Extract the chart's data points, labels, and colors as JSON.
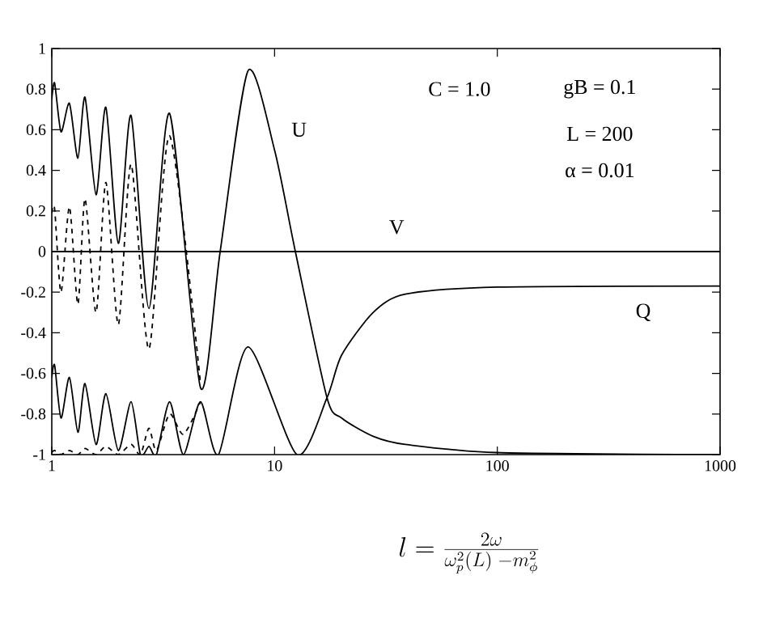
{
  "chart_data": {
    "type": "line",
    "xlabel": "l = \\frac{2\\omega}{\\omega_p^2(L) \\; - m_\\phi^2}",
    "log": "x",
    "xlim": [
      1,
      1000
    ],
    "xticks": [
      1,
      10,
      100,
      1000
    ],
    "ylim": [
      -1,
      1
    ],
    "yticks": [
      -1,
      -0.8,
      -0.6,
      -0.4,
      -0.2,
      0,
      0.2,
      0.4,
      0.6,
      0.8,
      1
    ],
    "grid": false,
    "series": [
      {
        "name": "U",
        "color": "#000000",
        "line_style": "solid",
        "x": [
          1,
          1.03,
          1.1,
          1.2,
          1.31,
          1.41,
          1.58,
          1.75,
          1.99,
          2.27,
          2.73,
          3.38,
          4.65,
          5.7,
          7.6,
          10,
          12.4,
          17.2,
          20,
          27.7,
          38.6,
          100,
          1000
        ],
        "values": [
          0.75,
          0.83,
          0.59,
          0.73,
          0.46,
          0.76,
          0.28,
          0.71,
          0.04,
          0.67,
          -0.28,
          0.68,
          -0.67,
          0,
          0.89,
          0.5,
          0,
          -0.72,
          -0.82,
          -0.91,
          -0.95,
          -0.99,
          -1
        ]
      },
      {
        "name": "Q",
        "color": "#000000",
        "line_style": "solid",
        "x": [
          1,
          1.03,
          1.1,
          1.2,
          1.31,
          1.41,
          1.58,
          1.75,
          1.99,
          2.27,
          2.5,
          2.73,
          2.95,
          3.38,
          3.9,
          4.65,
          5.6,
          7.6,
          12.6,
          17.2,
          20,
          27.7,
          38.6,
          100,
          1000
        ],
        "values": [
          -0.62,
          -0.56,
          -0.82,
          -0.62,
          -0.89,
          -0.65,
          -0.95,
          -0.7,
          -0.98,
          -0.74,
          -1,
          -0.96,
          -1,
          -0.74,
          -1,
          -0.74,
          -1,
          -0.47,
          -1,
          -0.72,
          -0.51,
          -0.3,
          -0.21,
          -0.175,
          -0.17
        ]
      },
      {
        "name": "V",
        "color": "#000000",
        "line_style": "solid",
        "x": [
          1,
          1000
        ],
        "values": [
          0,
          0
        ]
      },
      {
        "color": "#000000",
        "line_style": "dashed",
        "x": [
          1,
          1.03,
          1.1,
          1.2,
          1.31,
          1.41,
          1.58,
          1.75,
          1.99,
          2.27,
          2.73,
          3.38,
          4.65
        ],
        "values": [
          0.19,
          0.21,
          -0.2,
          0.22,
          -0.26,
          0.26,
          -0.3,
          0.34,
          -0.36,
          0.43,
          -0.48,
          0.57,
          -0.65
        ]
      },
      {
        "color": "#000000",
        "line_style": "dashed",
        "x": [
          1,
          1.03,
          1.1,
          1.2,
          1.31,
          1.41,
          1.58,
          1.75,
          1.99,
          2.27,
          2.5,
          2.73,
          2.95,
          3.38,
          3.9,
          4.65
        ],
        "values": [
          -0.99,
          -0.98,
          -1,
          -0.98,
          -1,
          -0.97,
          -1,
          -0.96,
          -1,
          -0.95,
          -1,
          -0.87,
          -0.98,
          -0.8,
          -0.9,
          -0.74
        ]
      }
    ],
    "annotations": [
      "C = 1.0",
      "gB = 0.1",
      "L = 200",
      "α = 0.01"
    ]
  }
}
